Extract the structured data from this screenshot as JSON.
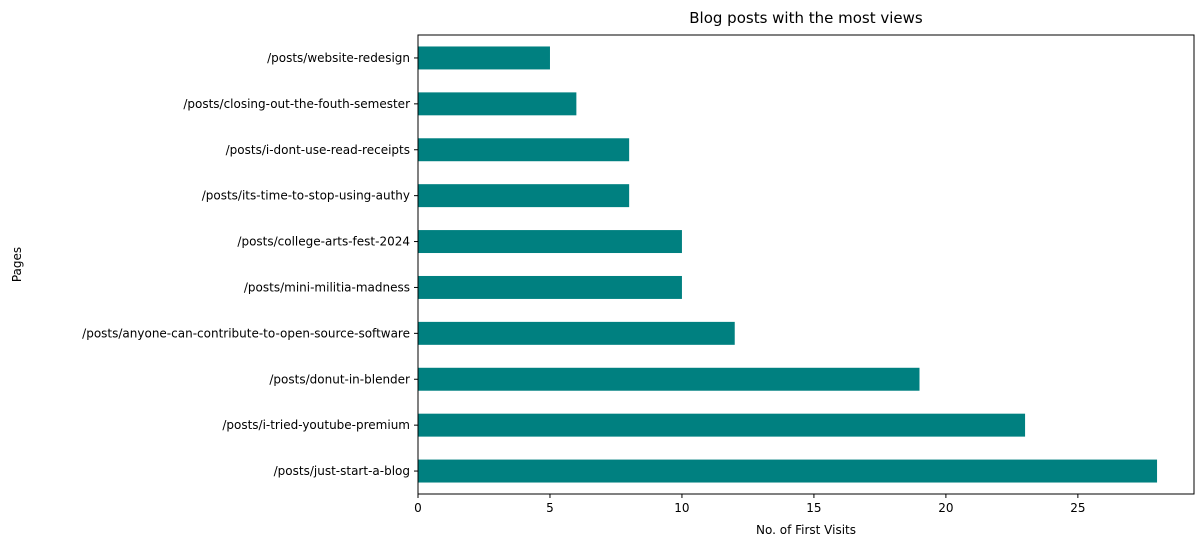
{
  "chart_data": {
    "type": "bar",
    "orientation": "horizontal",
    "title": "Blog posts with the most views",
    "xlabel": "No. of First Visits",
    "ylabel": "Pages",
    "categories": [
      "/posts/just-start-a-blog",
      "/posts/i-tried-youtube-premium",
      "/posts/donut-in-blender",
      "/posts/anyone-can-contribute-to-open-source-software",
      "/posts/mini-militia-madness",
      "/posts/college-arts-fest-2024",
      "/posts/its-time-to-stop-using-authy",
      "/posts/i-dont-use-read-receipts",
      "/posts/closing-out-the-fouth-semester",
      "/posts/website-redesign"
    ],
    "values": [
      28,
      23,
      19,
      12,
      10,
      10,
      8,
      8,
      6,
      5
    ],
    "xlim": [
      0,
      29.4
    ],
    "xticks": [
      "0",
      "5",
      "10",
      "15",
      "20",
      "25"
    ],
    "grid": false,
    "legend": "none",
    "bar_color": "#008080"
  }
}
